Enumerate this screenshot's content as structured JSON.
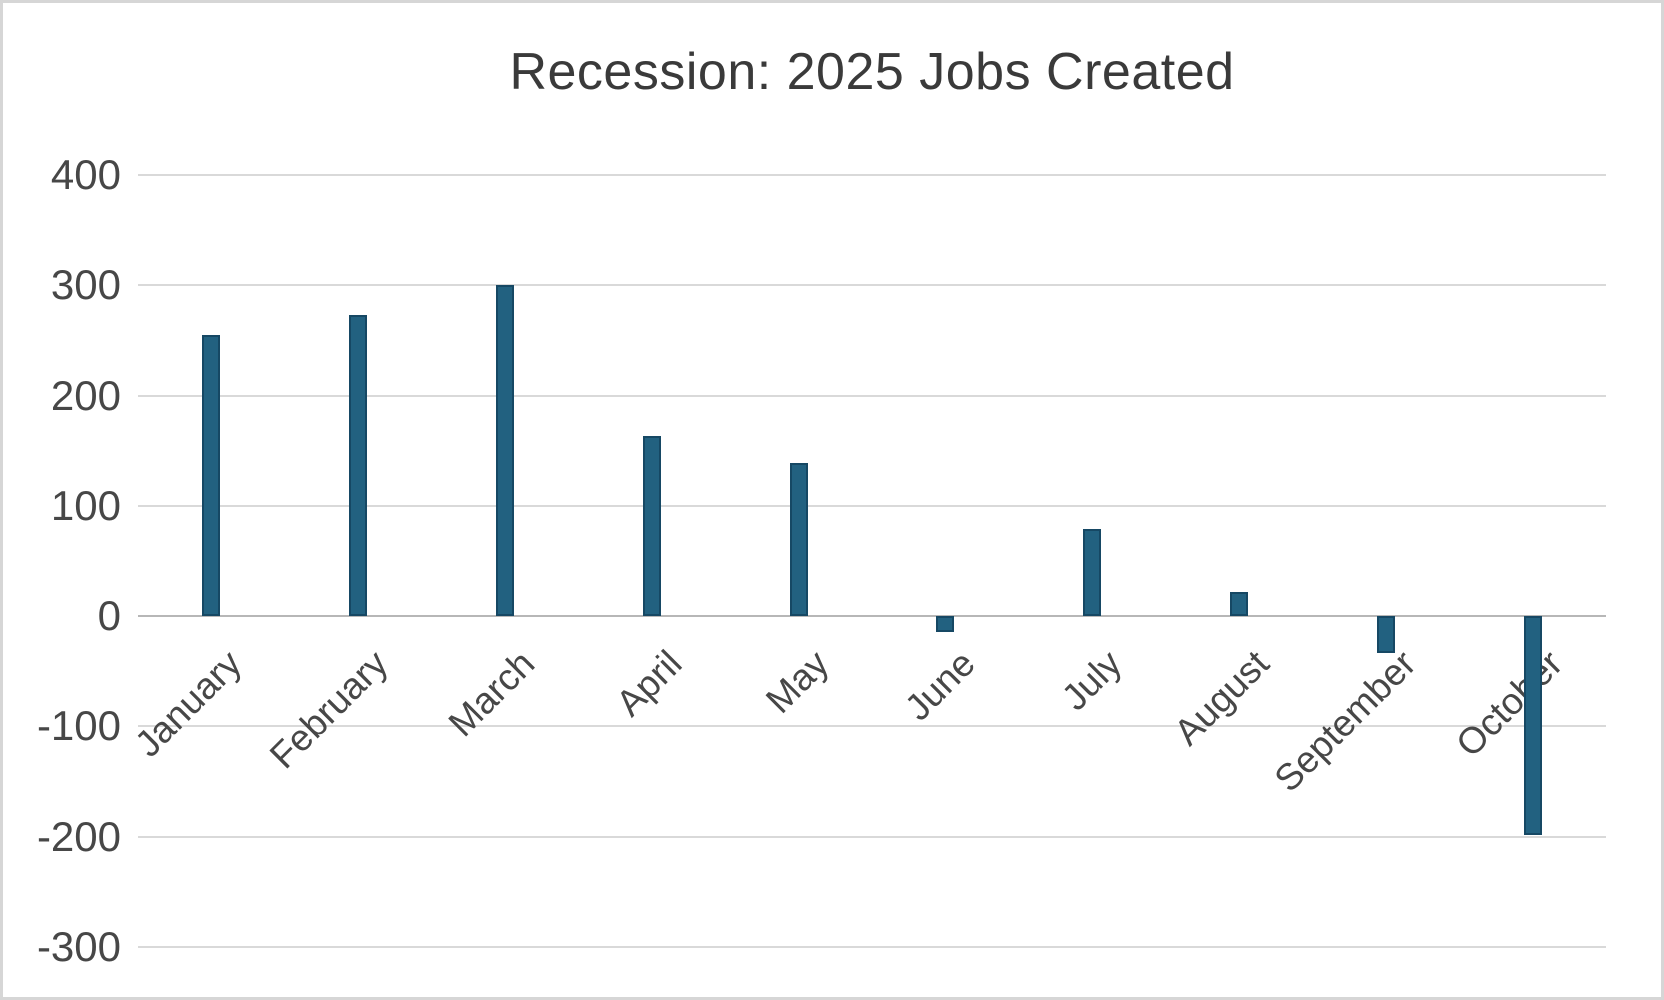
{
  "window": {
    "background": "#ffffff",
    "border_color": "#d6d6d6"
  },
  "chart_data": {
    "type": "bar",
    "title": "Recession: 2025 Jobs Created",
    "categories": [
      "January",
      "February",
      "March",
      "April",
      "May",
      "June",
      "July",
      "August",
      "September",
      "October"
    ],
    "values": [
      255,
      273,
      300,
      163,
      139,
      -14,
      79,
      22,
      -33,
      -198
    ],
    "xlabel": "",
    "ylabel": "",
    "ylim": [
      -300,
      400
    ],
    "yticks": [
      400,
      300,
      200,
      100,
      0,
      -100,
      -200,
      -300
    ],
    "grid": true,
    "legend": false,
    "x_tick_rotation_deg": 45,
    "colors": {
      "bar_fill": "#226180",
      "bar_border": "#164864",
      "gridline": "#d9d9d9",
      "zero_axis_line": "#b7b7b7",
      "tick_label": "#474747",
      "title": "#3a3a3a"
    }
  }
}
